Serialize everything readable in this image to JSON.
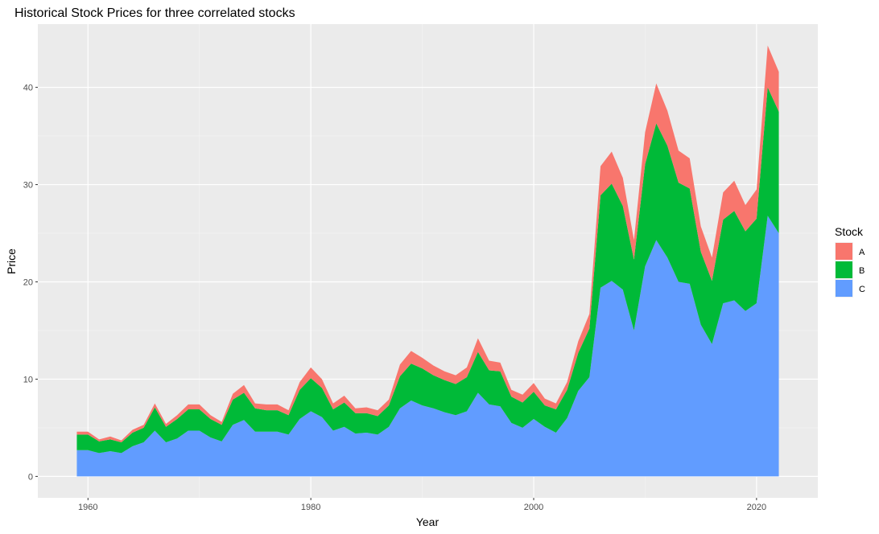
{
  "chart_data": {
    "type": "area",
    "stacked": true,
    "title": "Historical Stock Prices for three correlated stocks",
    "xlabel": "Year",
    "ylabel": "Price",
    "xlim": [
      1955.5,
      2025.5
    ],
    "ylim": [
      -2.2,
      46.5
    ],
    "x_ticks": [
      1960,
      1980,
      2000,
      2020
    ],
    "y_ticks": [
      0,
      10,
      20,
      30,
      40
    ],
    "x_tick_labels": [
      "1960",
      "1980",
      "2000",
      "2020"
    ],
    "y_tick_labels": [
      "0",
      "10",
      "20",
      "30",
      "40"
    ],
    "grid": true,
    "legend_position": "right",
    "legend_title": "Stock",
    "x": [
      1959,
      1960,
      1961,
      1962,
      1963,
      1964,
      1965,
      1966,
      1967,
      1968,
      1969,
      1970,
      1971,
      1972,
      1973,
      1974,
      1975,
      1976,
      1977,
      1978,
      1979,
      1980,
      1981,
      1982,
      1983,
      1984,
      1985,
      1986,
      1987,
      1988,
      1989,
      1990,
      1991,
      1992,
      1993,
      1994,
      1995,
      1996,
      1997,
      1998,
      1999,
      2000,
      2001,
      2002,
      2003,
      2004,
      2005,
      2006,
      2007,
      2008,
      2009,
      2010,
      2011,
      2012,
      2013,
      2014,
      2015,
      2016,
      2017,
      2018,
      2019,
      2020,
      2021,
      2022
    ],
    "series": [
      {
        "name": "A",
        "color": "#F8766D",
        "values": [
          0.3,
          0.3,
          0.2,
          0.3,
          0.2,
          0.3,
          0.3,
          0.4,
          0.3,
          0.4,
          0.5,
          0.5,
          0.4,
          0.3,
          0.6,
          0.8,
          0.5,
          0.6,
          0.6,
          0.5,
          0.8,
          1.1,
          0.9,
          0.6,
          0.7,
          0.5,
          0.6,
          0.6,
          0.6,
          1.2,
          1.3,
          1.1,
          1.0,
          0.9,
          0.9,
          1.0,
          1.4,
          1.0,
          0.9,
          0.7,
          0.8,
          0.9,
          0.7,
          0.6,
          0.8,
          1.2,
          1.5,
          3.0,
          3.3,
          2.9,
          2.0,
          3.3,
          4.1,
          3.6,
          3.3,
          3.1,
          2.6,
          2.4,
          2.8,
          3.1,
          2.7,
          3.0,
          4.3,
          4.1
        ]
      },
      {
        "name": "B",
        "color": "#00BA38",
        "values": [
          1.6,
          1.6,
          1.2,
          1.2,
          1.1,
          1.4,
          1.5,
          2.4,
          1.6,
          2.0,
          2.2,
          2.2,
          1.9,
          1.7,
          2.6,
          2.8,
          2.4,
          2.2,
          2.2,
          2.0,
          3.0,
          3.4,
          3.0,
          2.2,
          2.5,
          2.1,
          2.0,
          1.9,
          2.2,
          3.3,
          3.8,
          3.8,
          3.4,
          3.3,
          3.2,
          3.5,
          4.2,
          3.5,
          3.6,
          2.7,
          2.6,
          2.8,
          2.2,
          2.4,
          2.9,
          3.9,
          5.0,
          9.5,
          10.0,
          8.6,
          7.3,
          10.5,
          12.0,
          11.5,
          10.2,
          9.8,
          7.5,
          6.5,
          8.6,
          9.2,
          8.2,
          8.7,
          13.2,
          12.5
        ]
      },
      {
        "name": "C",
        "color": "#619CFF",
        "values": [
          2.7,
          2.7,
          2.4,
          2.6,
          2.4,
          3.1,
          3.5,
          4.7,
          3.5,
          3.9,
          4.7,
          4.7,
          4.0,
          3.6,
          5.3,
          5.8,
          4.6,
          4.6,
          4.6,
          4.3,
          5.9,
          6.7,
          6.1,
          4.7,
          5.1,
          4.4,
          4.5,
          4.3,
          5.1,
          7.0,
          7.8,
          7.3,
          7.0,
          6.6,
          6.3,
          6.7,
          8.6,
          7.4,
          7.2,
          5.5,
          5.0,
          5.9,
          5.1,
          4.5,
          6.0,
          8.8,
          10.2,
          19.4,
          20.1,
          19.2,
          15.0,
          21.6,
          24.3,
          22.5,
          20.0,
          19.8,
          15.6,
          13.6,
          17.8,
          18.1,
          17.0,
          17.8,
          26.8,
          25.0
        ]
      }
    ]
  }
}
